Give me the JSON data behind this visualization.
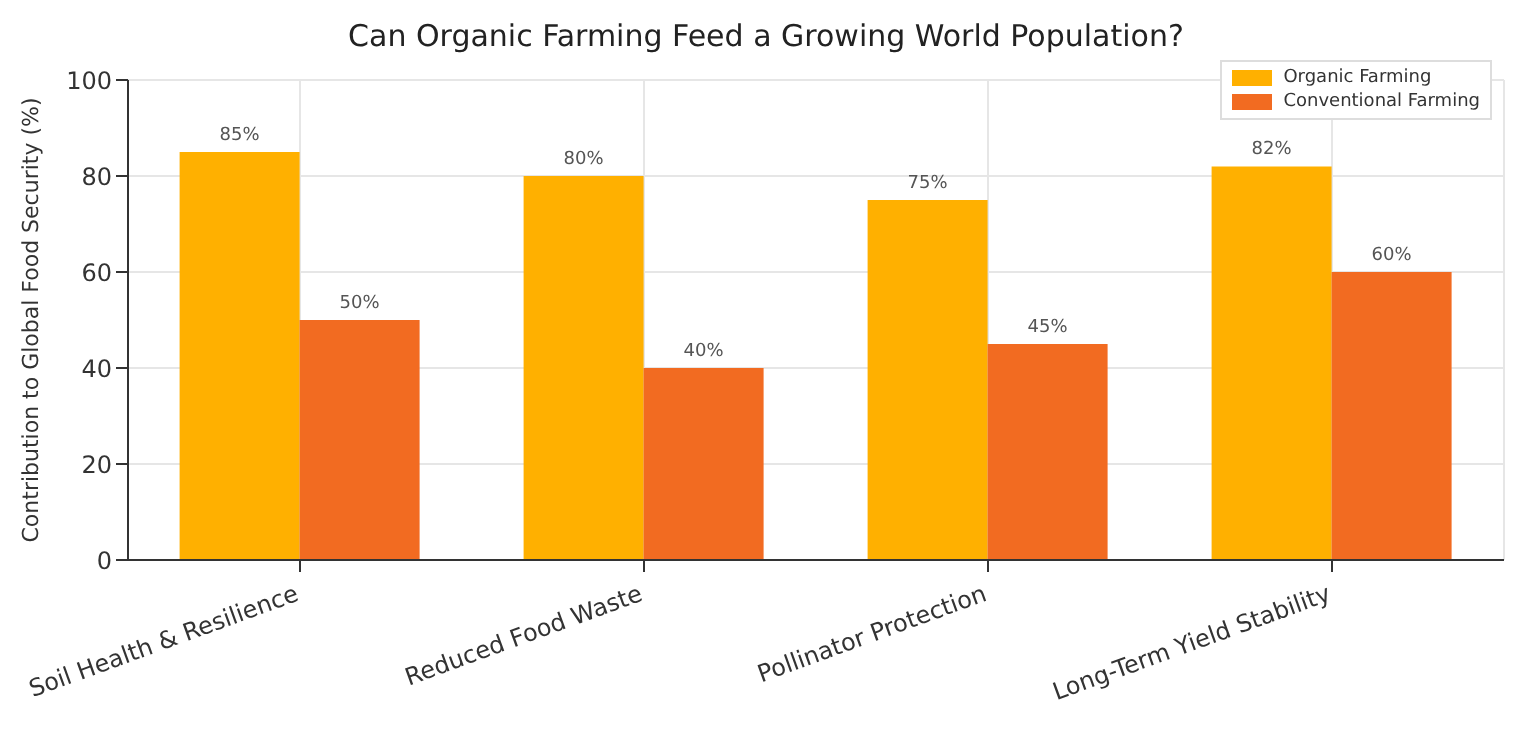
{
  "chart_data": {
    "type": "bar",
    "title": "Can Organic Farming Feed a Growing World Population?",
    "ylabel": "Contribution to Global Food Security (%)",
    "categories": [
      "Soil Health & Resilience",
      "Reduced Food Waste",
      "Pollinator Protection",
      "Long-Term Yield Stability"
    ],
    "series": [
      {
        "name": "Organic Farming",
        "color": "#ffb000",
        "values": [
          85,
          80,
          75,
          82
        ],
        "value_labels": [
          "85%",
          "80%",
          "75%",
          "82%"
        ]
      },
      {
        "name": "Conventional Farming",
        "color": "#f26b21",
        "values": [
          50,
          40,
          45,
          60
        ],
        "value_labels": [
          "50%",
          "40%",
          "45%",
          "60%"
        ]
      }
    ],
    "ylim": [
      0,
      100
    ],
    "yticks": [
      0,
      20,
      40,
      60,
      80,
      100
    ],
    "grid": true,
    "legend": "top right"
  }
}
